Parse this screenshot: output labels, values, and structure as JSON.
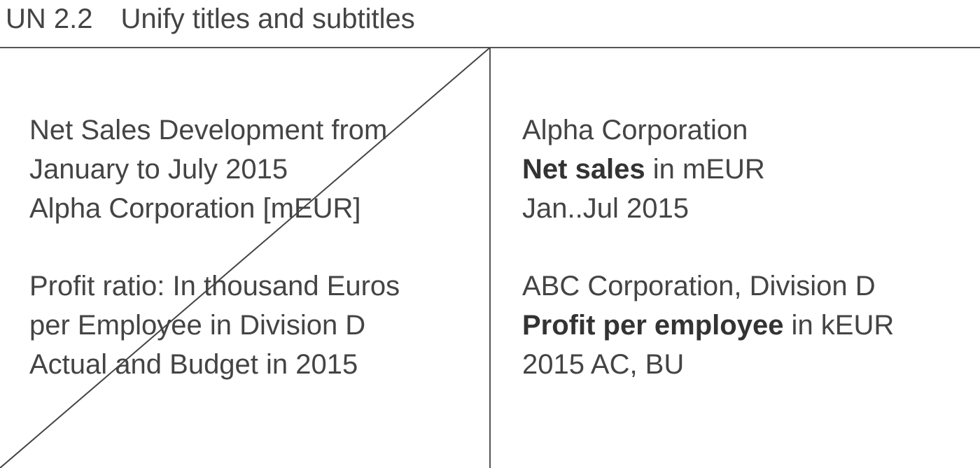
{
  "header": {
    "number": "UN 2.2",
    "title": "Unify titles and subtitles"
  },
  "bad_example": {
    "block1": [
      "Net Sales Development from",
      "January to July 2015",
      "Alpha Corporation [mEUR]"
    ],
    "block2": [
      "Profit ratio: In thousand Euros",
      "per Employee in Division D",
      "Actual and Budget in 2015"
    ]
  },
  "good_example": {
    "block1": {
      "entity": "Alpha Corporation",
      "measure": "Net sales",
      "unit": " in mEUR",
      "period": "Jan..Jul 2015"
    },
    "block2": {
      "entity": "ABC Corporation, Division D",
      "measure": "Profit per employee",
      "unit": " in kEUR",
      "period": "2015 AC, BU"
    }
  },
  "colors": {
    "text": "#444444",
    "lines": "#555555"
  }
}
